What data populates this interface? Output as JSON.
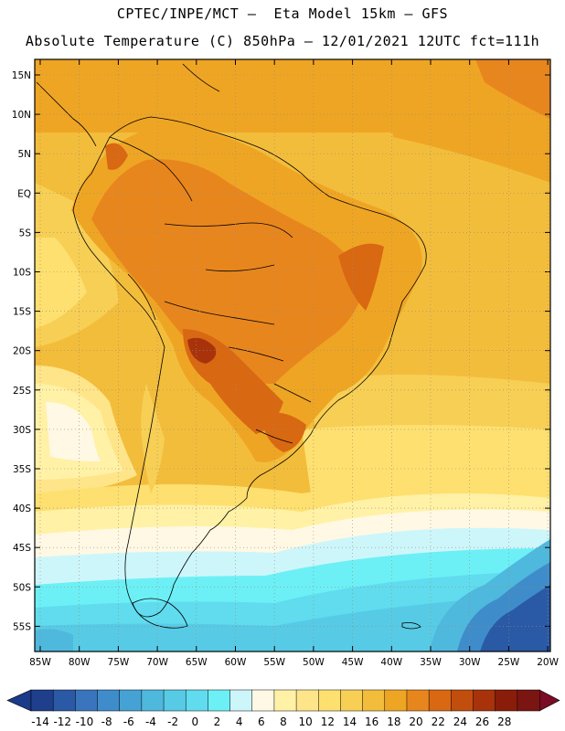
{
  "header": {
    "line1": "CPTEC/INPE/MCT –  Eta Model 15km – GFS",
    "line2": "Absolute Temperature (C) 850hPa – 12/01/2021 12UTC fct=111h"
  },
  "lat_labels": [
    "15N",
    "10N",
    "5N",
    "EQ",
    "5S",
    "10S",
    "15S",
    "20S",
    "25S",
    "30S",
    "35S",
    "40S",
    "45S",
    "50S",
    "55S"
  ],
  "lon_labels": [
    "85W",
    "80W",
    "75W",
    "70W",
    "65W",
    "60W",
    "55W",
    "50W",
    "45W",
    "40W",
    "35W",
    "30W",
    "25W",
    "20W"
  ],
  "colorbar": {
    "labels": [
      "-14",
      "-12",
      "-10",
      "-8",
      "-6",
      "-4",
      "-2",
      "0",
      "2",
      "4",
      "6",
      "8",
      "10",
      "12",
      "14",
      "16",
      "18",
      "20",
      "22",
      "24",
      "26",
      "28"
    ],
    "colors": [
      "#1f3f8c",
      "#2a5aa6",
      "#3a74bd",
      "#3f8cca",
      "#46a2d4",
      "#4fb8dd",
      "#57cbe6",
      "#60dcee",
      "#6cf0f6",
      "#cdf6fb",
      "#fff8e4",
      "#fff1a6",
      "#ffe58a",
      "#fde070",
      "#f7cf55",
      "#f3bd3c",
      "#efa524",
      "#e8861e",
      "#d96812",
      "#c24e0e",
      "#a8330b",
      "#8a1d0a",
      "#7a1512"
    ],
    "under_color": "#1a3a8a",
    "over_color": "#7a0c24"
  }
}
